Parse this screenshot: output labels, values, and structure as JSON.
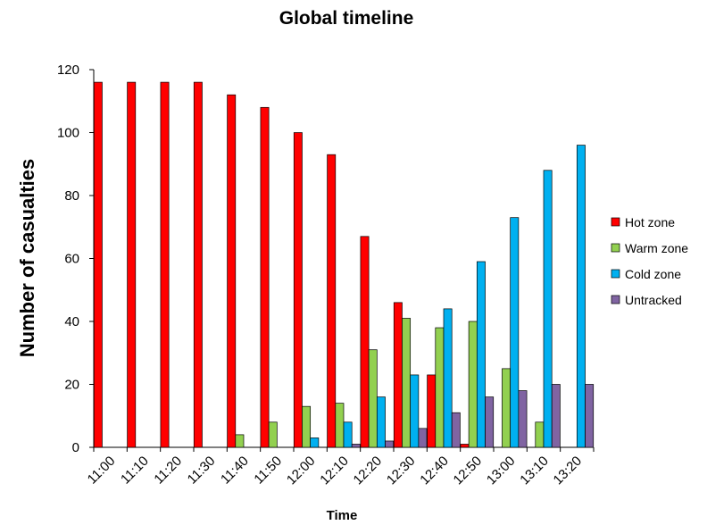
{
  "chart_data": {
    "type": "bar",
    "title": "Global timeline",
    "xlabel": "Time",
    "ylabel": "Number of casualties",
    "categories": [
      "11:00",
      "11:10",
      "11:20",
      "11:30",
      "11:40",
      "11:50",
      "12:00",
      "12:10",
      "12:20",
      "12:30",
      "12:40",
      "12:50",
      "13:00",
      "13:10",
      "13:20"
    ],
    "ylim": [
      0,
      120
    ],
    "yticks": [
      0,
      20,
      40,
      60,
      80,
      100,
      120
    ],
    "grid": false,
    "legend_position": "right",
    "series": [
      {
        "name": "Hot zone",
        "color": "#ff0000",
        "values": [
          116,
          116,
          116,
          116,
          112,
          108,
          100,
          93,
          67,
          46,
          23,
          1,
          0,
          0,
          0
        ]
      },
      {
        "name": "Warm zone",
        "color": "#92d050",
        "values": [
          0,
          0,
          0,
          0,
          4,
          8,
          13,
          14,
          31,
          41,
          38,
          40,
          25,
          8,
          0
        ]
      },
      {
        "name": "Cold zone",
        "color": "#00b0f0",
        "values": [
          0,
          0,
          0,
          0,
          0,
          0,
          3,
          8,
          16,
          23,
          44,
          59,
          73,
          88,
          96
        ]
      },
      {
        "name": "Untracked",
        "color": "#8064a2",
        "values": [
          0,
          0,
          0,
          0,
          0,
          0,
          0,
          1,
          2,
          6,
          11,
          16,
          18,
          20,
          20
        ]
      }
    ]
  }
}
